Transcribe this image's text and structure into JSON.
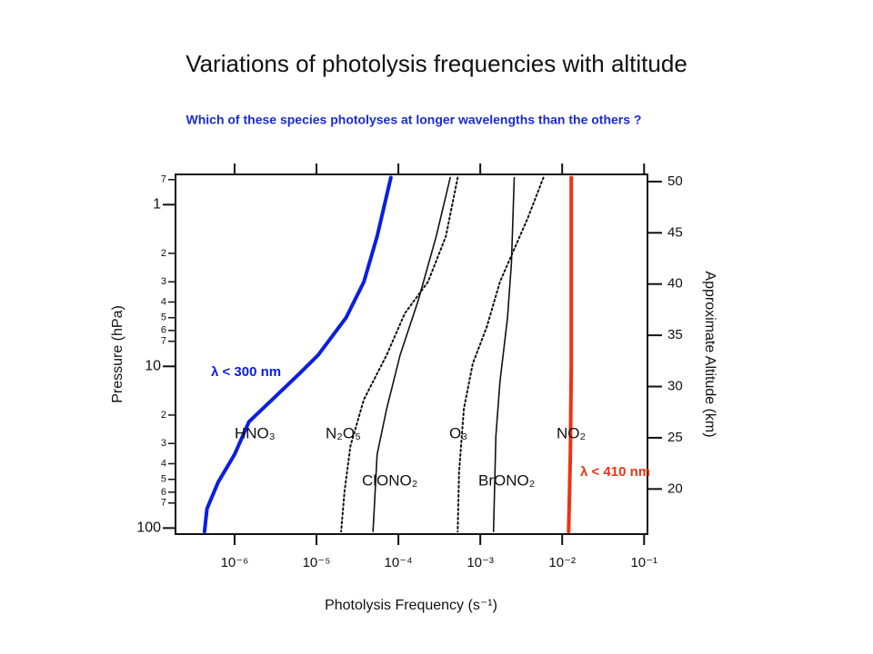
{
  "chart_data": {
    "type": "line",
    "title": "Variations of photolysis frequencies with altitude",
    "subtitle": "Which of these species photolyses at longer wavelengths than the others ?",
    "x_label": "Photolysis Frequency (s⁻¹)",
    "y_label": "Pressure (hPa)",
    "y2_label": "Approximate Altitude (km)",
    "xscale": "log",
    "yscale": "log",
    "y_inverted": true,
    "xlim": [
      1.9e-07,
      0.11
    ],
    "ylim": [
      0.65,
      109
    ],
    "y2lim": [
      15.6,
      50.7
    ],
    "xticks": [
      {
        "value": 1e-06,
        "label": "10⁻⁶"
      },
      {
        "value": 1e-05,
        "label": "10⁻⁵"
      },
      {
        "value": 0.0001,
        "label": "10⁻⁴"
      },
      {
        "value": 0.001,
        "label": "10⁻³"
      },
      {
        "value": 0.01,
        "label": "10⁻²"
      },
      {
        "value": 0.1,
        "label": "10⁻¹"
      }
    ],
    "yticks": [
      {
        "value": 0.7,
        "label": "7"
      },
      1,
      2,
      3,
      4,
      5,
      6,
      7,
      10,
      {
        "value": 20,
        "label": "2"
      },
      {
        "value": 30,
        "label": "3"
      },
      {
        "value": 40,
        "label": "4"
      },
      {
        "value": 50,
        "label": "5"
      },
      {
        "value": 60,
        "label": "6"
      },
      {
        "value": 70,
        "label": "7"
      },
      100
    ],
    "y2ticks": [
      20,
      25,
      30,
      35,
      40,
      45,
      50
    ],
    "series": [
      {
        "name": "HNO₃",
        "color": "#0a1fe0",
        "style": "solid",
        "width": 4,
        "x": [
          8.1e-05,
          5.5e-05,
          3.8e-05,
          2.3e-05,
          1.05e-05,
          6.3e-06,
          2.9e-06,
          1.5e-06,
          1e-06,
          6.3e-07,
          4.6e-07,
          4.3e-07
        ],
        "values": [
          0.68,
          1.57,
          3.0,
          5.0,
          8.5,
          11,
          16,
          22,
          35,
          52,
          76,
          105
        ]
      },
      {
        "name": "N₂O₅",
        "color": "#111111",
        "style": "dotted",
        "width": 2,
        "x": [
          0.00053,
          0.00038,
          0.00023,
          0.00012,
          7.2e-05,
          3.8e-05,
          2.6e-05,
          2.2e-05,
          2e-05
        ],
        "values": [
          0.68,
          1.57,
          3.0,
          4.7,
          8.5,
          16,
          31,
          59,
          105
        ]
      },
      {
        "name": "ClONO₂",
        "color": "#111111",
        "style": "solid",
        "width": 1.6,
        "x": [
          0.00043,
          0.00029,
          0.000175,
          0.000105,
          7.2e-05,
          5.5e-05,
          4.9e-05
        ],
        "values": [
          0.68,
          1.57,
          3.9,
          8.5,
          18.3,
          35,
          105
        ]
      },
      {
        "name": "O₃",
        "color": "#111111",
        "style": "dotted",
        "width": 2,
        "x": [
          0.0059,
          0.0038,
          0.00174,
          0.0012,
          0.00081,
          0.00063,
          0.00055,
          0.00053
        ],
        "values": [
          0.68,
          1.21,
          3.0,
          5.7,
          9.6,
          18.3,
          45,
          105
        ]
      },
      {
        "name": "BrONO₂",
        "color": "#111111",
        "style": "solid",
        "width": 1.6,
        "x": [
          0.0026,
          0.0024,
          0.00215,
          0.00174,
          0.00155,
          0.00145
        ],
        "values": [
          0.68,
          2.3,
          5.0,
          12.4,
          27,
          105
        ]
      },
      {
        "name": "NO₂",
        "color": "#ee3311",
        "style": "solid",
        "width": 4,
        "x": [
          0.0129,
          0.0129,
          0.0126,
          0.012
        ],
        "values": [
          0.68,
          10,
          35,
          105
        ]
      }
    ],
    "annotations": [
      {
        "text": "λ < 300 nm",
        "color": "#0a1fe0"
      },
      {
        "text": "λ < 410 nm",
        "color": "#ee3311"
      }
    ]
  }
}
